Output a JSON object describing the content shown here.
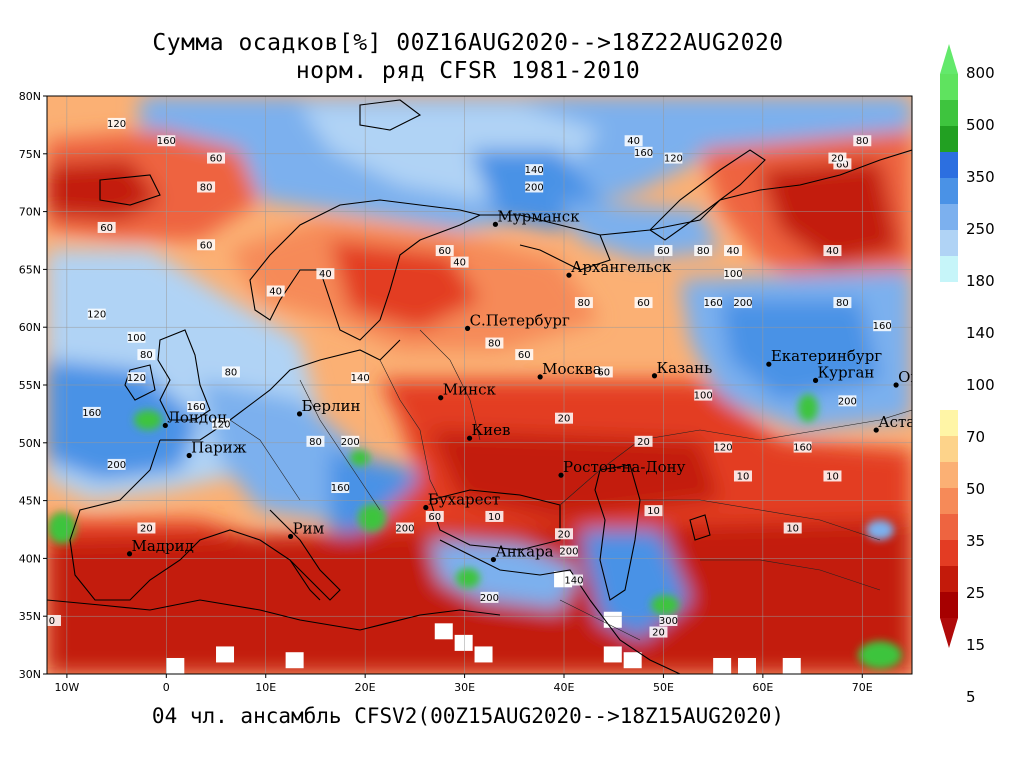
{
  "title_line1": "Сумма осадков[%] 00Z16AUG2020-->18Z22AUG2020",
  "title_line2": "норм. ряд CFSR 1981-2010",
  "footer": "04 чл. ансамбль CFSV2(00Z15AUG2020-->18Z15AUG2020)",
  "map": {
    "lat_range": [
      30,
      80
    ],
    "lon_range": [
      -12,
      75
    ],
    "lat_labels": [
      "80N",
      "75N",
      "70N",
      "65N",
      "60N",
      "55N",
      "50N",
      "45N",
      "40N",
      "35N",
      "30N"
    ],
    "lat_values": [
      80,
      75,
      70,
      65,
      60,
      55,
      50,
      45,
      40,
      35,
      30
    ],
    "lon_labels": [
      "10W",
      "0",
      "10E",
      "20E",
      "30E",
      "40E",
      "50E",
      "60E",
      "70E"
    ],
    "lon_values": [
      -10,
      0,
      10,
      20,
      30,
      40,
      50,
      60,
      70
    ],
    "cities": [
      {
        "name": "Мурманск",
        "lon": 33.1,
        "lat": 68.9
      },
      {
        "name": "Архангельск",
        "lon": 40.5,
        "lat": 64.5
      },
      {
        "name": "С.Петербург",
        "lon": 30.3,
        "lat": 59.9
      },
      {
        "name": "Екатеринбург",
        "lon": 60.6,
        "lat": 56.8
      },
      {
        "name": "Москва",
        "lon": 37.6,
        "lat": 55.7
      },
      {
        "name": "Казань",
        "lon": 49.1,
        "lat": 55.8
      },
      {
        "name": "Курган",
        "lon": 65.3,
        "lat": 55.4
      },
      {
        "name": "Минск",
        "lon": 27.6,
        "lat": 53.9
      },
      {
        "name": "Омск",
        "lon": 73.4,
        "lat": 55.0
      },
      {
        "name": "Берлин",
        "lon": 13.4,
        "lat": 52.5
      },
      {
        "name": "Лондон",
        "lon": -0.1,
        "lat": 51.5
      },
      {
        "name": "Киев",
        "lon": 30.5,
        "lat": 50.4
      },
      {
        "name": "Астана",
        "lon": 71.4,
        "lat": 51.1
      },
      {
        "name": "Париж",
        "lon": 2.3,
        "lat": 48.9
      },
      {
        "name": "Ростов-на-Дону",
        "lon": 39.7,
        "lat": 47.2
      },
      {
        "name": "Бухарест",
        "lon": 26.1,
        "lat": 44.4
      },
      {
        "name": "Рим",
        "lon": 12.5,
        "lat": 41.9
      },
      {
        "name": "Мадрид",
        "lon": -3.7,
        "lat": 40.4
      },
      {
        "name": "Анкара",
        "lon": 32.9,
        "lat": 39.9
      }
    ],
    "contour_labels": [
      {
        "t": "120",
        "lon": -5,
        "lat": 77.5
      },
      {
        "t": "160",
        "lon": 0,
        "lat": 76
      },
      {
        "t": "60",
        "lon": 5,
        "lat": 74.5
      },
      {
        "t": "80",
        "lon": 4,
        "lat": 72
      },
      {
        "t": "60",
        "lon": -6,
        "lat": 68.5
      },
      {
        "t": "60",
        "lon": 4,
        "lat": 67
      },
      {
        "t": "40",
        "lon": 16,
        "lat": 64.5
      },
      {
        "t": "40",
        "lon": 11,
        "lat": 63
      },
      {
        "t": "140",
        "lon": 37,
        "lat": 73.5
      },
      {
        "t": "200",
        "lon": 37,
        "lat": 72
      },
      {
        "t": "160",
        "lon": 48,
        "lat": 75
      },
      {
        "t": "120",
        "lon": 51,
        "lat": 74.5
      },
      {
        "t": "60",
        "lon": 28,
        "lat": 66.5
      },
      {
        "t": "40",
        "lon": 29.5,
        "lat": 65.5
      },
      {
        "t": "60",
        "lon": 50,
        "lat": 66.5
      },
      {
        "t": "80",
        "lon": 54,
        "lat": 66.5
      },
      {
        "t": "40",
        "lon": 57,
        "lat": 66.5
      },
      {
        "t": "100",
        "lon": 57,
        "lat": 64.5
      },
      {
        "t": "160",
        "lon": 55,
        "lat": 62
      },
      {
        "t": "200",
        "lon": 58,
        "lat": 62
      },
      {
        "t": "60",
        "lon": 48,
        "lat": 62
      },
      {
        "t": "80",
        "lon": 42,
        "lat": 62
      },
      {
        "t": "80",
        "lon": 33,
        "lat": 58.5
      },
      {
        "t": "60",
        "lon": 36,
        "lat": 57.5
      },
      {
        "t": "60",
        "lon": 44,
        "lat": 56
      },
      {
        "t": "20",
        "lon": 40,
        "lat": 52
      },
      {
        "t": "20",
        "lon": 48,
        "lat": 50
      },
      {
        "t": "100",
        "lon": 54,
        "lat": 54
      },
      {
        "t": "120",
        "lon": 56,
        "lat": 49.5
      },
      {
        "t": "160",
        "lon": 64,
        "lat": 49.5
      },
      {
        "t": "10",
        "lon": 58,
        "lat": 47
      },
      {
        "t": "10",
        "lon": 67,
        "lat": 47
      },
      {
        "t": "10",
        "lon": 63,
        "lat": 42.5
      },
      {
        "t": "10",
        "lon": 33,
        "lat": 43.5
      },
      {
        "t": "10",
        "lon": 49,
        "lat": 44
      },
      {
        "t": "20",
        "lon": 40,
        "lat": 42
      },
      {
        "t": "200",
        "lon": 40.5,
        "lat": 40.5
      },
      {
        "t": "140",
        "lon": 41,
        "lat": 38
      },
      {
        "t": "200",
        "lon": 32.5,
        "lat": 36.5
      },
      {
        "t": "300",
        "lon": 50.5,
        "lat": 34.5
      },
      {
        "t": "20",
        "lon": 49.5,
        "lat": 33.5
      },
      {
        "t": "0",
        "lon": -11.5,
        "lat": 34.5
      },
      {
        "t": "20",
        "lon": -2,
        "lat": 42.5
      },
      {
        "t": "200",
        "lon": -5,
        "lat": 48
      },
      {
        "t": "160",
        "lon": -7.5,
        "lat": 52.5
      },
      {
        "t": "120",
        "lon": -3,
        "lat": 55.5
      },
      {
        "t": "80",
        "lon": -2,
        "lat": 57.5
      },
      {
        "t": "100",
        "lon": -3,
        "lat": 59
      },
      {
        "t": "120",
        "lon": -7,
        "lat": 61
      },
      {
        "t": "80",
        "lon": 6.5,
        "lat": 56
      },
      {
        "t": "120",
        "lon": 5.5,
        "lat": 51.5
      },
      {
        "t": "160",
        "lon": 3,
        "lat": 53
      },
      {
        "t": "200",
        "lon": 18.5,
        "lat": 50
      },
      {
        "t": "160",
        "lon": 17.5,
        "lat": 46
      },
      {
        "t": "200",
        "lon": 24,
        "lat": 42.5
      },
      {
        "t": "60",
        "lon": 27,
        "lat": 43.5
      },
      {
        "t": "140",
        "lon": 19.5,
        "lat": 55.5
      },
      {
        "t": "80",
        "lon": 15,
        "lat": 50
      },
      {
        "t": "160",
        "lon": 72,
        "lat": 60
      },
      {
        "t": "80",
        "lon": 68,
        "lat": 62
      },
      {
        "t": "60",
        "lon": 68,
        "lat": 74
      },
      {
        "t": "80",
        "lon": 70,
        "lat": 76
      },
      {
        "t": "20",
        "lon": 67.5,
        "lat": 74.5
      },
      {
        "t": "40",
        "lon": 67,
        "lat": 66.5
      },
      {
        "t": "200",
        "lon": 68.5,
        "lat": 53.5
      },
      {
        "t": "40",
        "lon": 47,
        "lat": 76
      }
    ],
    "white_boxes": [
      {
        "lon": 0,
        "lat": 30
      },
      {
        "lon": 5,
        "lat": 31
      },
      {
        "lon": 12,
        "lat": 30.5
      },
      {
        "lon": 27,
        "lat": 33
      },
      {
        "lon": 29,
        "lat": 32
      },
      {
        "lon": 31,
        "lat": 31
      },
      {
        "lon": 39,
        "lat": 37.5
      },
      {
        "lon": 44,
        "lat": 34
      },
      {
        "lon": 44,
        "lat": 31
      },
      {
        "lon": 46,
        "lat": 30.5
      },
      {
        "lon": 55,
        "lat": 30
      },
      {
        "lon": 57.5,
        "lat": 30
      },
      {
        "lon": 62,
        "lat": 30
      }
    ]
  },
  "legend": {
    "labels": [
      "800",
      "500",
      "350",
      "250",
      "180",
      "140",
      "100",
      "70",
      "50",
      "35",
      "25",
      "15",
      "5"
    ],
    "colors_wet": [
      "#5fe35f",
      "#3ec43e",
      "#22a022",
      "#2c6fe0",
      "#4a92e6",
      "#7cb0ee",
      "#b0d3f5",
      "#c6f5f9"
    ],
    "colors_dry": [
      "#fff5a6",
      "#fdd38a",
      "#fbb074",
      "#f68a58",
      "#ee6440",
      "#e33c23",
      "#c31a0a",
      "#a60000"
    ],
    "color_top_arrow": "#63e96b",
    "color_bottom_arrow": "#b00a0a"
  }
}
